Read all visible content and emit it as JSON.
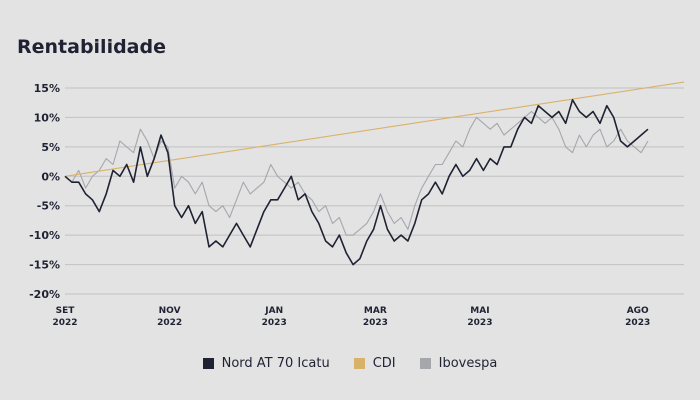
{
  "page": {
    "title": "Rentabilidade"
  },
  "chart_data": {
    "type": "line",
    "title": "Rentabilidade",
    "xlabel": "",
    "ylabel": "",
    "ylim": [
      -20,
      15
    ],
    "y_ticks": [
      "15%",
      "10%",
      "5%",
      "0%",
      "-5%",
      "-10%",
      "-15%",
      "-20%"
    ],
    "x_ticks": [
      {
        "month": "SET",
        "year": "2022",
        "date": "2022-09-01"
      },
      {
        "month": "NOV",
        "year": "2022",
        "date": "2022-11-01"
      },
      {
        "month": "JAN",
        "year": "2023",
        "date": "2023-01-01"
      },
      {
        "month": "MAR",
        "year": "2023",
        "date": "2023-03-01"
      },
      {
        "month": "MAI",
        "year": "2023",
        "date": "2023-05-01"
      },
      {
        "month": "AGO",
        "year": "2023",
        "date": "2023-08-01"
      }
    ],
    "x_range": [
      "2022-09-01",
      "2023-08-28"
    ],
    "grid": "horizontal",
    "legend_position": "bottom",
    "series": [
      {
        "name": "Nord AT 70 Icatu",
        "color": "#1f2233",
        "points": [
          [
            "2022-09-01",
            0
          ],
          [
            "2022-09-05",
            -1
          ],
          [
            "2022-09-09",
            -1
          ],
          [
            "2022-09-13",
            -3
          ],
          [
            "2022-09-17",
            -4
          ],
          [
            "2022-09-21",
            -6
          ],
          [
            "2022-09-25",
            -3
          ],
          [
            "2022-09-29",
            1
          ],
          [
            "2022-10-03",
            0
          ],
          [
            "2022-10-07",
            2
          ],
          [
            "2022-10-11",
            -1
          ],
          [
            "2022-10-15",
            5
          ],
          [
            "2022-10-19",
            0
          ],
          [
            "2022-10-23",
            3
          ],
          [
            "2022-10-27",
            7
          ],
          [
            "2022-10-31",
            4
          ],
          [
            "2022-11-04",
            -5
          ],
          [
            "2022-11-08",
            -7
          ],
          [
            "2022-11-12",
            -5
          ],
          [
            "2022-11-16",
            -8
          ],
          [
            "2022-11-20",
            -6
          ],
          [
            "2022-11-24",
            -12
          ],
          [
            "2022-11-28",
            -11
          ],
          [
            "2022-12-02",
            -12
          ],
          [
            "2022-12-06",
            -10
          ],
          [
            "2022-12-10",
            -8
          ],
          [
            "2022-12-14",
            -10
          ],
          [
            "2022-12-18",
            -12
          ],
          [
            "2022-12-22",
            -9
          ],
          [
            "2022-12-26",
            -6
          ],
          [
            "2022-12-30",
            -4
          ],
          [
            "2023-01-03",
            -4
          ],
          [
            "2023-01-07",
            -2
          ],
          [
            "2023-01-11",
            0
          ],
          [
            "2023-01-15",
            -4
          ],
          [
            "2023-01-19",
            -3
          ],
          [
            "2023-01-23",
            -6
          ],
          [
            "2023-01-27",
            -8
          ],
          [
            "2023-01-31",
            -11
          ],
          [
            "2023-02-04",
            -12
          ],
          [
            "2023-02-08",
            -10
          ],
          [
            "2023-02-12",
            -13
          ],
          [
            "2023-02-16",
            -15
          ],
          [
            "2023-02-20",
            -14
          ],
          [
            "2023-02-24",
            -11
          ],
          [
            "2023-02-28",
            -9
          ],
          [
            "2023-03-04",
            -5
          ],
          [
            "2023-03-08",
            -9
          ],
          [
            "2023-03-12",
            -11
          ],
          [
            "2023-03-16",
            -10
          ],
          [
            "2023-03-20",
            -11
          ],
          [
            "2023-03-24",
            -8
          ],
          [
            "2023-03-28",
            -4
          ],
          [
            "2023-04-01",
            -3
          ],
          [
            "2023-04-05",
            -1
          ],
          [
            "2023-04-09",
            -3
          ],
          [
            "2023-04-13",
            0
          ],
          [
            "2023-04-17",
            2
          ],
          [
            "2023-04-21",
            0
          ],
          [
            "2023-04-25",
            1
          ],
          [
            "2023-04-29",
            3
          ],
          [
            "2023-05-03",
            1
          ],
          [
            "2023-05-07",
            3
          ],
          [
            "2023-05-11",
            2
          ],
          [
            "2023-05-15",
            5
          ],
          [
            "2023-05-19",
            5
          ],
          [
            "2023-05-23",
            8
          ],
          [
            "2023-05-27",
            10
          ],
          [
            "2023-05-31",
            9
          ],
          [
            "2023-06-04",
            12
          ],
          [
            "2023-06-08",
            11
          ],
          [
            "2023-06-12",
            10
          ],
          [
            "2023-06-16",
            11
          ],
          [
            "2023-06-20",
            9
          ],
          [
            "2023-06-24",
            13
          ],
          [
            "2023-06-28",
            11
          ],
          [
            "2023-07-02",
            10
          ],
          [
            "2023-07-06",
            11
          ],
          [
            "2023-07-10",
            9
          ],
          [
            "2023-07-14",
            12
          ],
          [
            "2023-07-18",
            10
          ],
          [
            "2023-07-22",
            6
          ],
          [
            "2023-07-26",
            5
          ],
          [
            "2023-07-30",
            6
          ],
          [
            "2023-08-03",
            7
          ],
          [
            "2023-08-07",
            8
          ]
        ]
      },
      {
        "name": "CDI",
        "color": "#d9b26a",
        "points": [
          [
            "2022-09-01",
            0
          ],
          [
            "2023-08-28",
            16
          ]
        ]
      },
      {
        "name": "Ibovespa",
        "color": "#a6a6ad",
        "points": [
          [
            "2022-09-01",
            0
          ],
          [
            "2022-09-05",
            -1
          ],
          [
            "2022-09-09",
            1
          ],
          [
            "2022-09-13",
            -2
          ],
          [
            "2022-09-17",
            0
          ],
          [
            "2022-09-21",
            1
          ],
          [
            "2022-09-25",
            3
          ],
          [
            "2022-09-29",
            2
          ],
          [
            "2022-10-03",
            6
          ],
          [
            "2022-10-07",
            5
          ],
          [
            "2022-10-11",
            4
          ],
          [
            "2022-10-15",
            8
          ],
          [
            "2022-10-19",
            6
          ],
          [
            "2022-10-23",
            3
          ],
          [
            "2022-10-27",
            6
          ],
          [
            "2022-10-31",
            5
          ],
          [
            "2022-11-04",
            -2
          ],
          [
            "2022-11-08",
            0
          ],
          [
            "2022-11-12",
            -1
          ],
          [
            "2022-11-16",
            -3
          ],
          [
            "2022-11-20",
            -1
          ],
          [
            "2022-11-24",
            -5
          ],
          [
            "2022-11-28",
            -6
          ],
          [
            "2022-12-02",
            -5
          ],
          [
            "2022-12-06",
            -7
          ],
          [
            "2022-12-10",
            -4
          ],
          [
            "2022-12-14",
            -1
          ],
          [
            "2022-12-18",
            -3
          ],
          [
            "2022-12-22",
            -2
          ],
          [
            "2022-12-26",
            -1
          ],
          [
            "2022-12-30",
            2
          ],
          [
            "2023-01-03",
            0
          ],
          [
            "2023-01-07",
            -1
          ],
          [
            "2023-01-11",
            -2
          ],
          [
            "2023-01-15",
            -1
          ],
          [
            "2023-01-19",
            -3
          ],
          [
            "2023-01-23",
            -4
          ],
          [
            "2023-01-27",
            -6
          ],
          [
            "2023-01-31",
            -5
          ],
          [
            "2023-02-04",
            -8
          ],
          [
            "2023-02-08",
            -7
          ],
          [
            "2023-02-12",
            -10
          ],
          [
            "2023-02-16",
            -10
          ],
          [
            "2023-02-20",
            -9
          ],
          [
            "2023-02-24",
            -8
          ],
          [
            "2023-02-28",
            -6
          ],
          [
            "2023-03-04",
            -3
          ],
          [
            "2023-03-08",
            -6
          ],
          [
            "2023-03-12",
            -8
          ],
          [
            "2023-03-16",
            -7
          ],
          [
            "2023-03-20",
            -9
          ],
          [
            "2023-03-24",
            -5
          ],
          [
            "2023-03-28",
            -2
          ],
          [
            "2023-04-01",
            0
          ],
          [
            "2023-04-05",
            2
          ],
          [
            "2023-04-09",
            2
          ],
          [
            "2023-04-13",
            4
          ],
          [
            "2023-04-17",
            6
          ],
          [
            "2023-04-21",
            5
          ],
          [
            "2023-04-25",
            8
          ],
          [
            "2023-04-29",
            10
          ],
          [
            "2023-05-03",
            9
          ],
          [
            "2023-05-07",
            8
          ],
          [
            "2023-05-11",
            9
          ],
          [
            "2023-05-15",
            7
          ],
          [
            "2023-05-19",
            8
          ],
          [
            "2023-05-23",
            9
          ],
          [
            "2023-05-27",
            10
          ],
          [
            "2023-05-31",
            11
          ],
          [
            "2023-06-04",
            10
          ],
          [
            "2023-06-08",
            9
          ],
          [
            "2023-06-12",
            10
          ],
          [
            "2023-06-16",
            8
          ],
          [
            "2023-06-20",
            5
          ],
          [
            "2023-06-24",
            4
          ],
          [
            "2023-06-28",
            7
          ],
          [
            "2023-07-02",
            5
          ],
          [
            "2023-07-06",
            7
          ],
          [
            "2023-07-10",
            8
          ],
          [
            "2023-07-14",
            5
          ],
          [
            "2023-07-18",
            6
          ],
          [
            "2023-07-22",
            8
          ],
          [
            "2023-07-26",
            6
          ],
          [
            "2023-07-30",
            5
          ],
          [
            "2023-08-03",
            4
          ],
          [
            "2023-08-07",
            6
          ]
        ]
      }
    ]
  }
}
